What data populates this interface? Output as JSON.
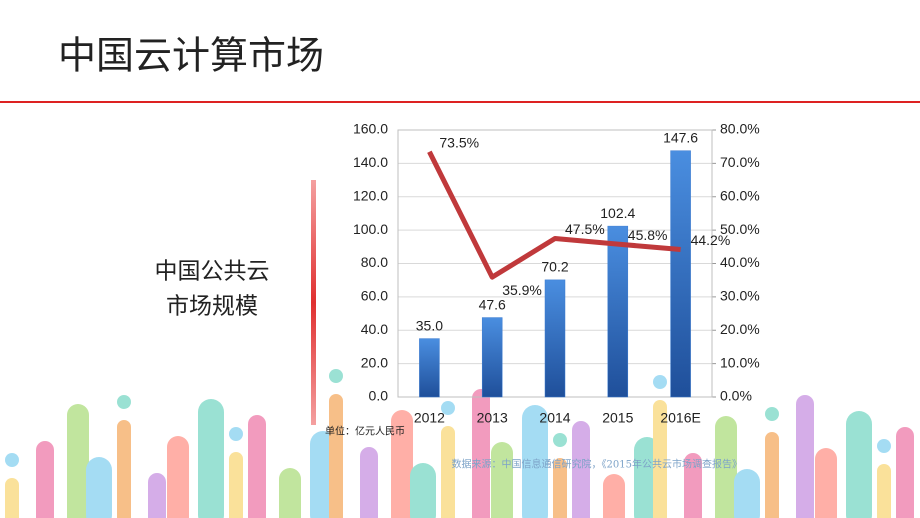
{
  "title": "中国云计算市场",
  "chart_data": {
    "type": "bar-line",
    "ylabel_lines": [
      "中国公共云",
      "市场规模"
    ],
    "unit": "单位：亿元人民币",
    "source": "数据来源：中国信息通信研究院，《2015年公共云市场调查报告》",
    "categories": [
      "2012",
      "2013",
      "2014",
      "2015",
      "2016E"
    ],
    "series": [
      {
        "type": "bar",
        "color": "#3a7bd0",
        "values": [
          35.0,
          47.6,
          70.2,
          102.4,
          147.6
        ],
        "value_labels": [
          "35.0",
          "47.6",
          "70.2",
          "102.4",
          "147.6"
        ]
      },
      {
        "type": "line",
        "axis": "y2",
        "color": "#c0393b",
        "values": [
          73.5,
          35.9,
          47.5,
          45.8,
          44.2
        ],
        "value_labels": [
          "73.5%",
          "35.9%",
          "47.5%",
          "45.8%",
          "44.2%"
        ]
      }
    ],
    "ylim": [
      0,
      160
    ],
    "yticks": [
      {
        "value": 0,
        "label": "0.0"
      },
      {
        "value": 20,
        "label": "20.0"
      },
      {
        "value": 40,
        "label": "40.0"
      },
      {
        "value": 60,
        "label": "60.0"
      },
      {
        "value": 80,
        "label": "80.0"
      },
      {
        "value": 100,
        "label": "100.0"
      },
      {
        "value": 120,
        "label": "120.0"
      },
      {
        "value": 140,
        "label": "140.0"
      },
      {
        "value": 160,
        "label": "160.0"
      }
    ],
    "y2lim": [
      0,
      80
    ],
    "y2ticks": [
      {
        "value": 0,
        "label": "0.0%"
      },
      {
        "value": 10,
        "label": "10.0%"
      },
      {
        "value": 20,
        "label": "20.0%"
      },
      {
        "value": 30,
        "label": "30.0%"
      },
      {
        "value": 40,
        "label": "40.0%"
      },
      {
        "value": 50,
        "label": "50.0%"
      },
      {
        "value": 60,
        "label": "60.0%"
      },
      {
        "value": 70,
        "label": "70.0%"
      },
      {
        "value": 80,
        "label": "80.0%"
      }
    ],
    "grid": true
  }
}
